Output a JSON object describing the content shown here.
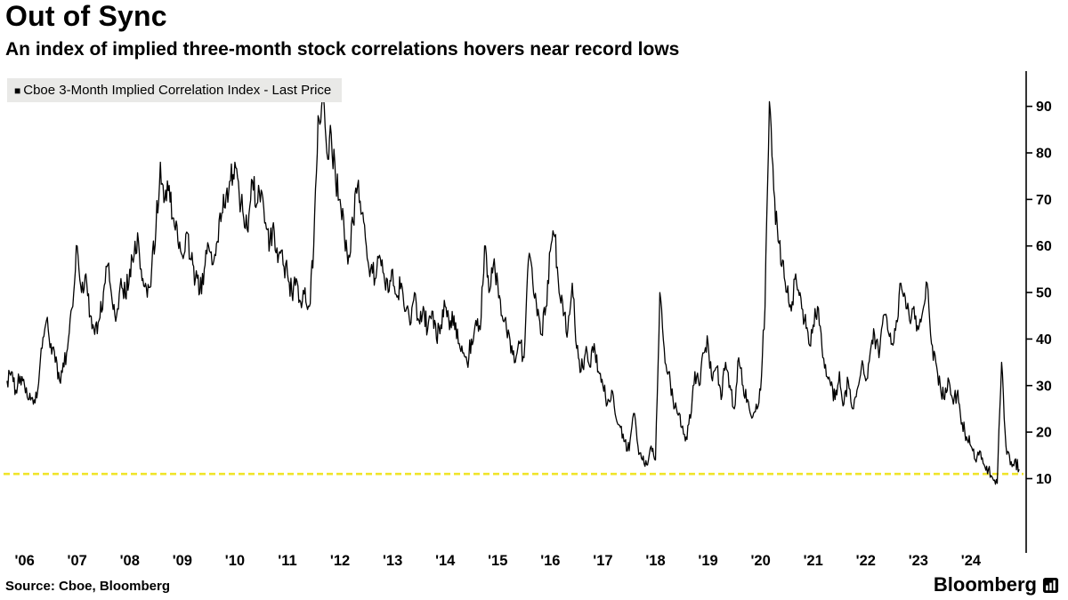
{
  "header": {
    "title": "Out of Sync",
    "subtitle": "An index of implied three-month stock correlations hovers near record lows"
  },
  "legend": {
    "marker": "■",
    "label": "Cboe 3-Month Implied Correlation Index - Last Price"
  },
  "footer": {
    "source": "Source: Cboe, Bloomberg",
    "brand": "Bloomberg"
  },
  "chart_data": {
    "type": "line",
    "title": "Out of Sync",
    "xlabel": "",
    "ylabel": "",
    "grid": false,
    "legend_position": "top-left",
    "x_range": [
      2005.6,
      2025.0
    ],
    "y_range": [
      -5,
      97
    ],
    "y_ticks": [
      10,
      20,
      30,
      40,
      50,
      60,
      70,
      80,
      90
    ],
    "x_ticks": [
      {
        "year": 2006,
        "label": "'06"
      },
      {
        "year": 2007,
        "label": "'07"
      },
      {
        "year": 2008,
        "label": "'08"
      },
      {
        "year": 2009,
        "label": "'09"
      },
      {
        "year": 2010,
        "label": "'10"
      },
      {
        "year": 2011,
        "label": "'11"
      },
      {
        "year": 2012,
        "label": "'12"
      },
      {
        "year": 2013,
        "label": "'13"
      },
      {
        "year": 2014,
        "label": "'14"
      },
      {
        "year": 2015,
        "label": "'15"
      },
      {
        "year": 2016,
        "label": "'16"
      },
      {
        "year": 2017,
        "label": "'17"
      },
      {
        "year": 2018,
        "label": "'18"
      },
      {
        "year": 2019,
        "label": "'19"
      },
      {
        "year": 2020,
        "label": "'20"
      },
      {
        "year": 2021,
        "label": "'21"
      },
      {
        "year": 2022,
        "label": "'22"
      },
      {
        "year": 2023,
        "label": "'23"
      },
      {
        "year": 2024,
        "label": "'24"
      }
    ],
    "reference_line": {
      "value": 11,
      "color": "#f0e42a",
      "style": "dashed"
    },
    "render": {
      "subdivisions": 5,
      "noise_amplitude": 2.1,
      "min_clamp": 7
    },
    "series": [
      {
        "name": "Cboe 3-Month Implied Correlation Index - Last Price",
        "color": "#000000",
        "start": {
          "year": 2005,
          "month": 9
        },
        "frequency": "monthly",
        "values": [
          31,
          33,
          29,
          32,
          30,
          27,
          26,
          29,
          38,
          44,
          39,
          35,
          31,
          34,
          40,
          47,
          60,
          50,
          54,
          45,
          41,
          44,
          50,
          56,
          48,
          45,
          53,
          49,
          55,
          58,
          61,
          53,
          49,
          55,
          64,
          78,
          70,
          73,
          66,
          61,
          58,
          63,
          57,
          53,
          50,
          55,
          60,
          56,
          61,
          67,
          71,
          74,
          78,
          71,
          66,
          63,
          74,
          69,
          72,
          65,
          61,
          63,
          58,
          56,
          54,
          50,
          53,
          48,
          51,
          47,
          60,
          88,
          92,
          80,
          84,
          74,
          70,
          62,
          58,
          65,
          73,
          67,
          60,
          55,
          53,
          58,
          54,
          50,
          55,
          49,
          52,
          46,
          43,
          50,
          44,
          47,
          42,
          46,
          40,
          43,
          47,
          42,
          45,
          39,
          37,
          35,
          40,
          44,
          42,
          60,
          50,
          56,
          52,
          45,
          42,
          37,
          35,
          39,
          36,
          57,
          52,
          45,
          41,
          47,
          59,
          62,
          50,
          45,
          42,
          52,
          38,
          33,
          37,
          34,
          39,
          33,
          30,
          26,
          29,
          23,
          21,
          18,
          16,
          24,
          17,
          14,
          13,
          17,
          14,
          50,
          38,
          33,
          27,
          24,
          21,
          19,
          23,
          33,
          30,
          37,
          39,
          31,
          34,
          27,
          35,
          30,
          25,
          36,
          30,
          27,
          23,
          26,
          29,
          47,
          91,
          72,
          61,
          57,
          50,
          46,
          54,
          50,
          44,
          39,
          43,
          47,
          38,
          32,
          30,
          27,
          33,
          26,
          31,
          25,
          29,
          34,
          31,
          37,
          41,
          36,
          45,
          42,
          39,
          44,
          52,
          49,
          44,
          47,
          42,
          46,
          52,
          39,
          35,
          30,
          27,
          31,
          26,
          29,
          22,
          19,
          17,
          14,
          16,
          13,
          12,
          10,
          9,
          35,
          17,
          13,
          14,
          12
        ]
      }
    ]
  }
}
